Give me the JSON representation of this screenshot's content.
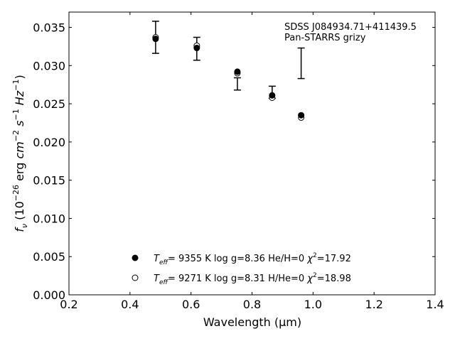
{
  "chart_data": {
    "type": "scatter",
    "title": "",
    "xlabel": "Wavelength (μm)",
    "ylabel": "f_ν (10^-26 erg cm^-2 s^-1 Hz^-1)",
    "xlim": [
      0.2,
      1.4
    ],
    "ylim": [
      0.0,
      0.037
    ],
    "xticks": [
      0.2,
      0.4,
      0.6,
      0.8,
      1.0,
      1.2,
      1.4
    ],
    "xtick_labels": [
      "0.2",
      "0.4",
      "0.6",
      "0.8",
      "1.0",
      "1.2",
      "1.4"
    ],
    "yticks": [
      0.0,
      0.005,
      0.01,
      0.015,
      0.02,
      0.025,
      0.03,
      0.035
    ],
    "ytick_labels": [
      "0.000",
      "0.005",
      "0.010",
      "0.015",
      "0.020",
      "0.025",
      "0.030",
      "0.035"
    ],
    "grid": false,
    "annotation_lines": [
      "SDSS J084934.71+411439.5",
      "Pan-STARRS grizy"
    ],
    "observed": {
      "x": [
        0.484,
        0.619,
        0.752,
        0.866,
        0.961
      ],
      "y": [
        0.0337,
        0.0322,
        0.0276,
        0.0265,
        0.0303
      ],
      "err": [
        0.0021,
        0.0015,
        0.0008,
        0.0008,
        0.002
      ]
    },
    "series": [
      {
        "name": "Teff= 9355 K log g=8.36 He/H=0 χ2=17.92",
        "marker": "filled-circle",
        "x": [
          0.484,
          0.619,
          0.752,
          0.866,
          0.961
        ],
        "y": [
          0.0335,
          0.0323,
          0.0292,
          0.0261,
          0.0235
        ]
      },
      {
        "name": "Teff= 9271 K log g=8.31 H/He=0 χ2=18.98",
        "marker": "open-circle",
        "x": [
          0.484,
          0.619,
          0.752,
          0.866,
          0.961
        ],
        "y": [
          0.0337,
          0.0326,
          0.029,
          0.0258,
          0.0232
        ]
      }
    ],
    "legend": {
      "placement": "bottom-center",
      "entries": [
        {
          "teff": "9355",
          "logg": "8.36",
          "comp": "He/H=0",
          "chi2": "17.92"
        },
        {
          "teff": "9271",
          "logg": "8.31",
          "comp": "H/He=0",
          "chi2": "18.98"
        }
      ]
    }
  }
}
